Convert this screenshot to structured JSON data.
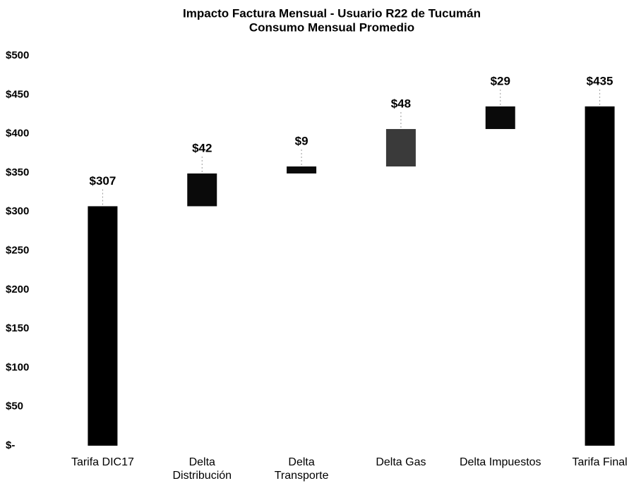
{
  "chart_data": {
    "type": "waterfall",
    "title": "Impacto Factura Mensual - Usuario R22 de Tucumán",
    "subtitle": "Consumo Mensual Promedio",
    "categories": [
      "Tarifa DIC17",
      "Delta Distribución",
      "Delta Transporte",
      "Delta Gas",
      "Delta Impuestos",
      "Tarifa Final"
    ],
    "values": [
      307,
      42,
      9,
      48,
      29,
      435
    ],
    "value_labels": [
      "$307",
      "$42",
      "$9",
      "$48",
      "$29",
      "$435"
    ],
    "colors": [
      "#000000",
      "#0a0a0a",
      "#0a0a0a",
      "#3a3a3a",
      "#0a0a0a",
      "#000000"
    ],
    "ylim": [
      0,
      500
    ],
    "yticks": [
      {
        "value": 0,
        "label": "$-"
      },
      {
        "value": 50,
        "label": "$50"
      },
      {
        "value": 100,
        "label": "$100"
      },
      {
        "value": 150,
        "label": "$150"
      },
      {
        "value": 200,
        "label": "$200"
      },
      {
        "value": 250,
        "label": "$250"
      },
      {
        "value": 300,
        "label": "$300"
      },
      {
        "value": 350,
        "label": "$350"
      },
      {
        "value": 400,
        "label": "$400"
      },
      {
        "value": 450,
        "label": "$450"
      },
      {
        "value": 500,
        "label": "$500"
      }
    ]
  }
}
